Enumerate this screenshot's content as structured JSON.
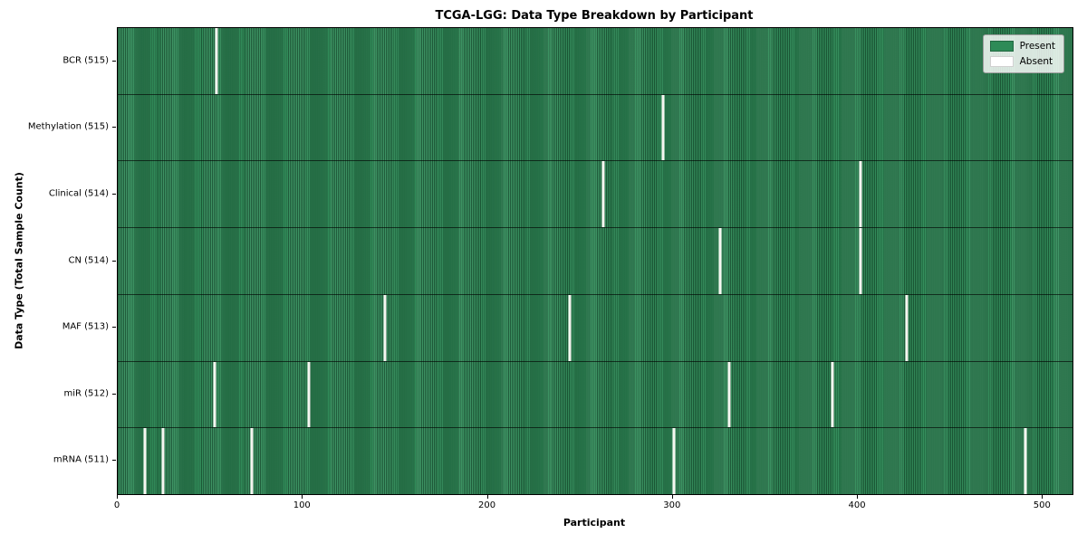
{
  "chart_data": {
    "type": "heatmap",
    "title": "TCGA-LGG: Data Type Breakdown by Participant",
    "xlabel": "Participant",
    "ylabel": "Data Type (Total Sample Count)",
    "n_participants": 516,
    "x_ticks": [
      0,
      100,
      200,
      300,
      400,
      500
    ],
    "grid": false,
    "legend": {
      "position": "upper-right",
      "entries": [
        {
          "label": "Present",
          "color": "#2e8b57"
        },
        {
          "label": "Absent",
          "color": "#ffffff"
        }
      ]
    },
    "colors": {
      "present": "#2e8b57",
      "absent": "#f6f6f1",
      "cell_edge": "rgba(8,38,22,0.5)",
      "row_separator": "rgba(0,0,0,0.62)"
    },
    "rows": [
      {
        "label": "BCR",
        "count": 515,
        "display": "BCR (515)",
        "absent_participants": [
          53
        ]
      },
      {
        "label": "Methylation",
        "count": 515,
        "display": "Methylation (515)",
        "absent_participants": [
          294
        ]
      },
      {
        "label": "Clinical",
        "count": 514,
        "display": "Clinical (514)",
        "absent_participants": [
          262,
          401
        ]
      },
      {
        "label": "CN",
        "count": 514,
        "display": "CN (514)",
        "absent_participants": [
          325,
          401
        ]
      },
      {
        "label": "MAF",
        "count": 513,
        "display": "MAF (513)",
        "absent_participants": [
          144,
          244,
          426
        ]
      },
      {
        "label": "miR",
        "count": 512,
        "display": "miR (512)",
        "absent_participants": [
          52,
          103,
          330,
          386
        ]
      },
      {
        "label": "mRNA",
        "count": 511,
        "display": "mRNA (511)",
        "absent_participants": [
          14,
          24,
          72,
          300,
          490
        ]
      }
    ]
  }
}
